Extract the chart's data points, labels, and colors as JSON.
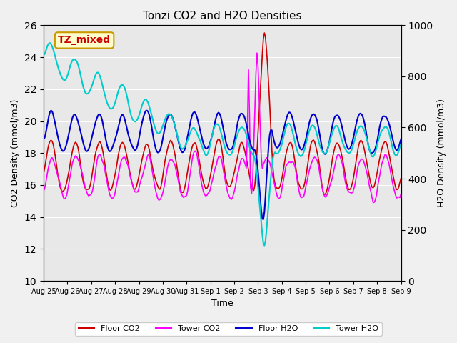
{
  "title": "Tonzi CO2 and H2O Densities",
  "xlabel": "Time",
  "ylabel_left": "CO2 Density (mmol/m3)",
  "ylabel_right": "H2O Density (mmol/m3)",
  "ylim_left": [
    10,
    26
  ],
  "ylim_right": [
    0,
    1000
  ],
  "annotation_text": "TZ_mixed",
  "annotation_color": "#cc0000",
  "annotation_bg": "#ffffcc",
  "annotation_border": "#cc9900",
  "bg_color": "#e8e8e8",
  "plot_bg": "#e8e8e8",
  "legend_entries": [
    "Floor CO2",
    "Tower CO2",
    "Floor H2O",
    "Tower H2O"
  ],
  "colors": {
    "floor_co2": "#cc0000",
    "tower_co2": "#ff00ff",
    "floor_h2o": "#0000cc",
    "tower_h2o": "#00cccc"
  },
  "x_tick_labels": [
    "Aug 25",
    "Aug 26",
    "Aug 27",
    "Aug 28",
    "Aug 29",
    "Aug 30",
    "Aug 31",
    "Sep 1",
    "Sep 2",
    "Sep 3",
    "Sep 4",
    "Sep 5",
    "Sep 6",
    "Sep 7",
    "Sep 8",
    "Sep 9"
  ],
  "n_points": 336
}
